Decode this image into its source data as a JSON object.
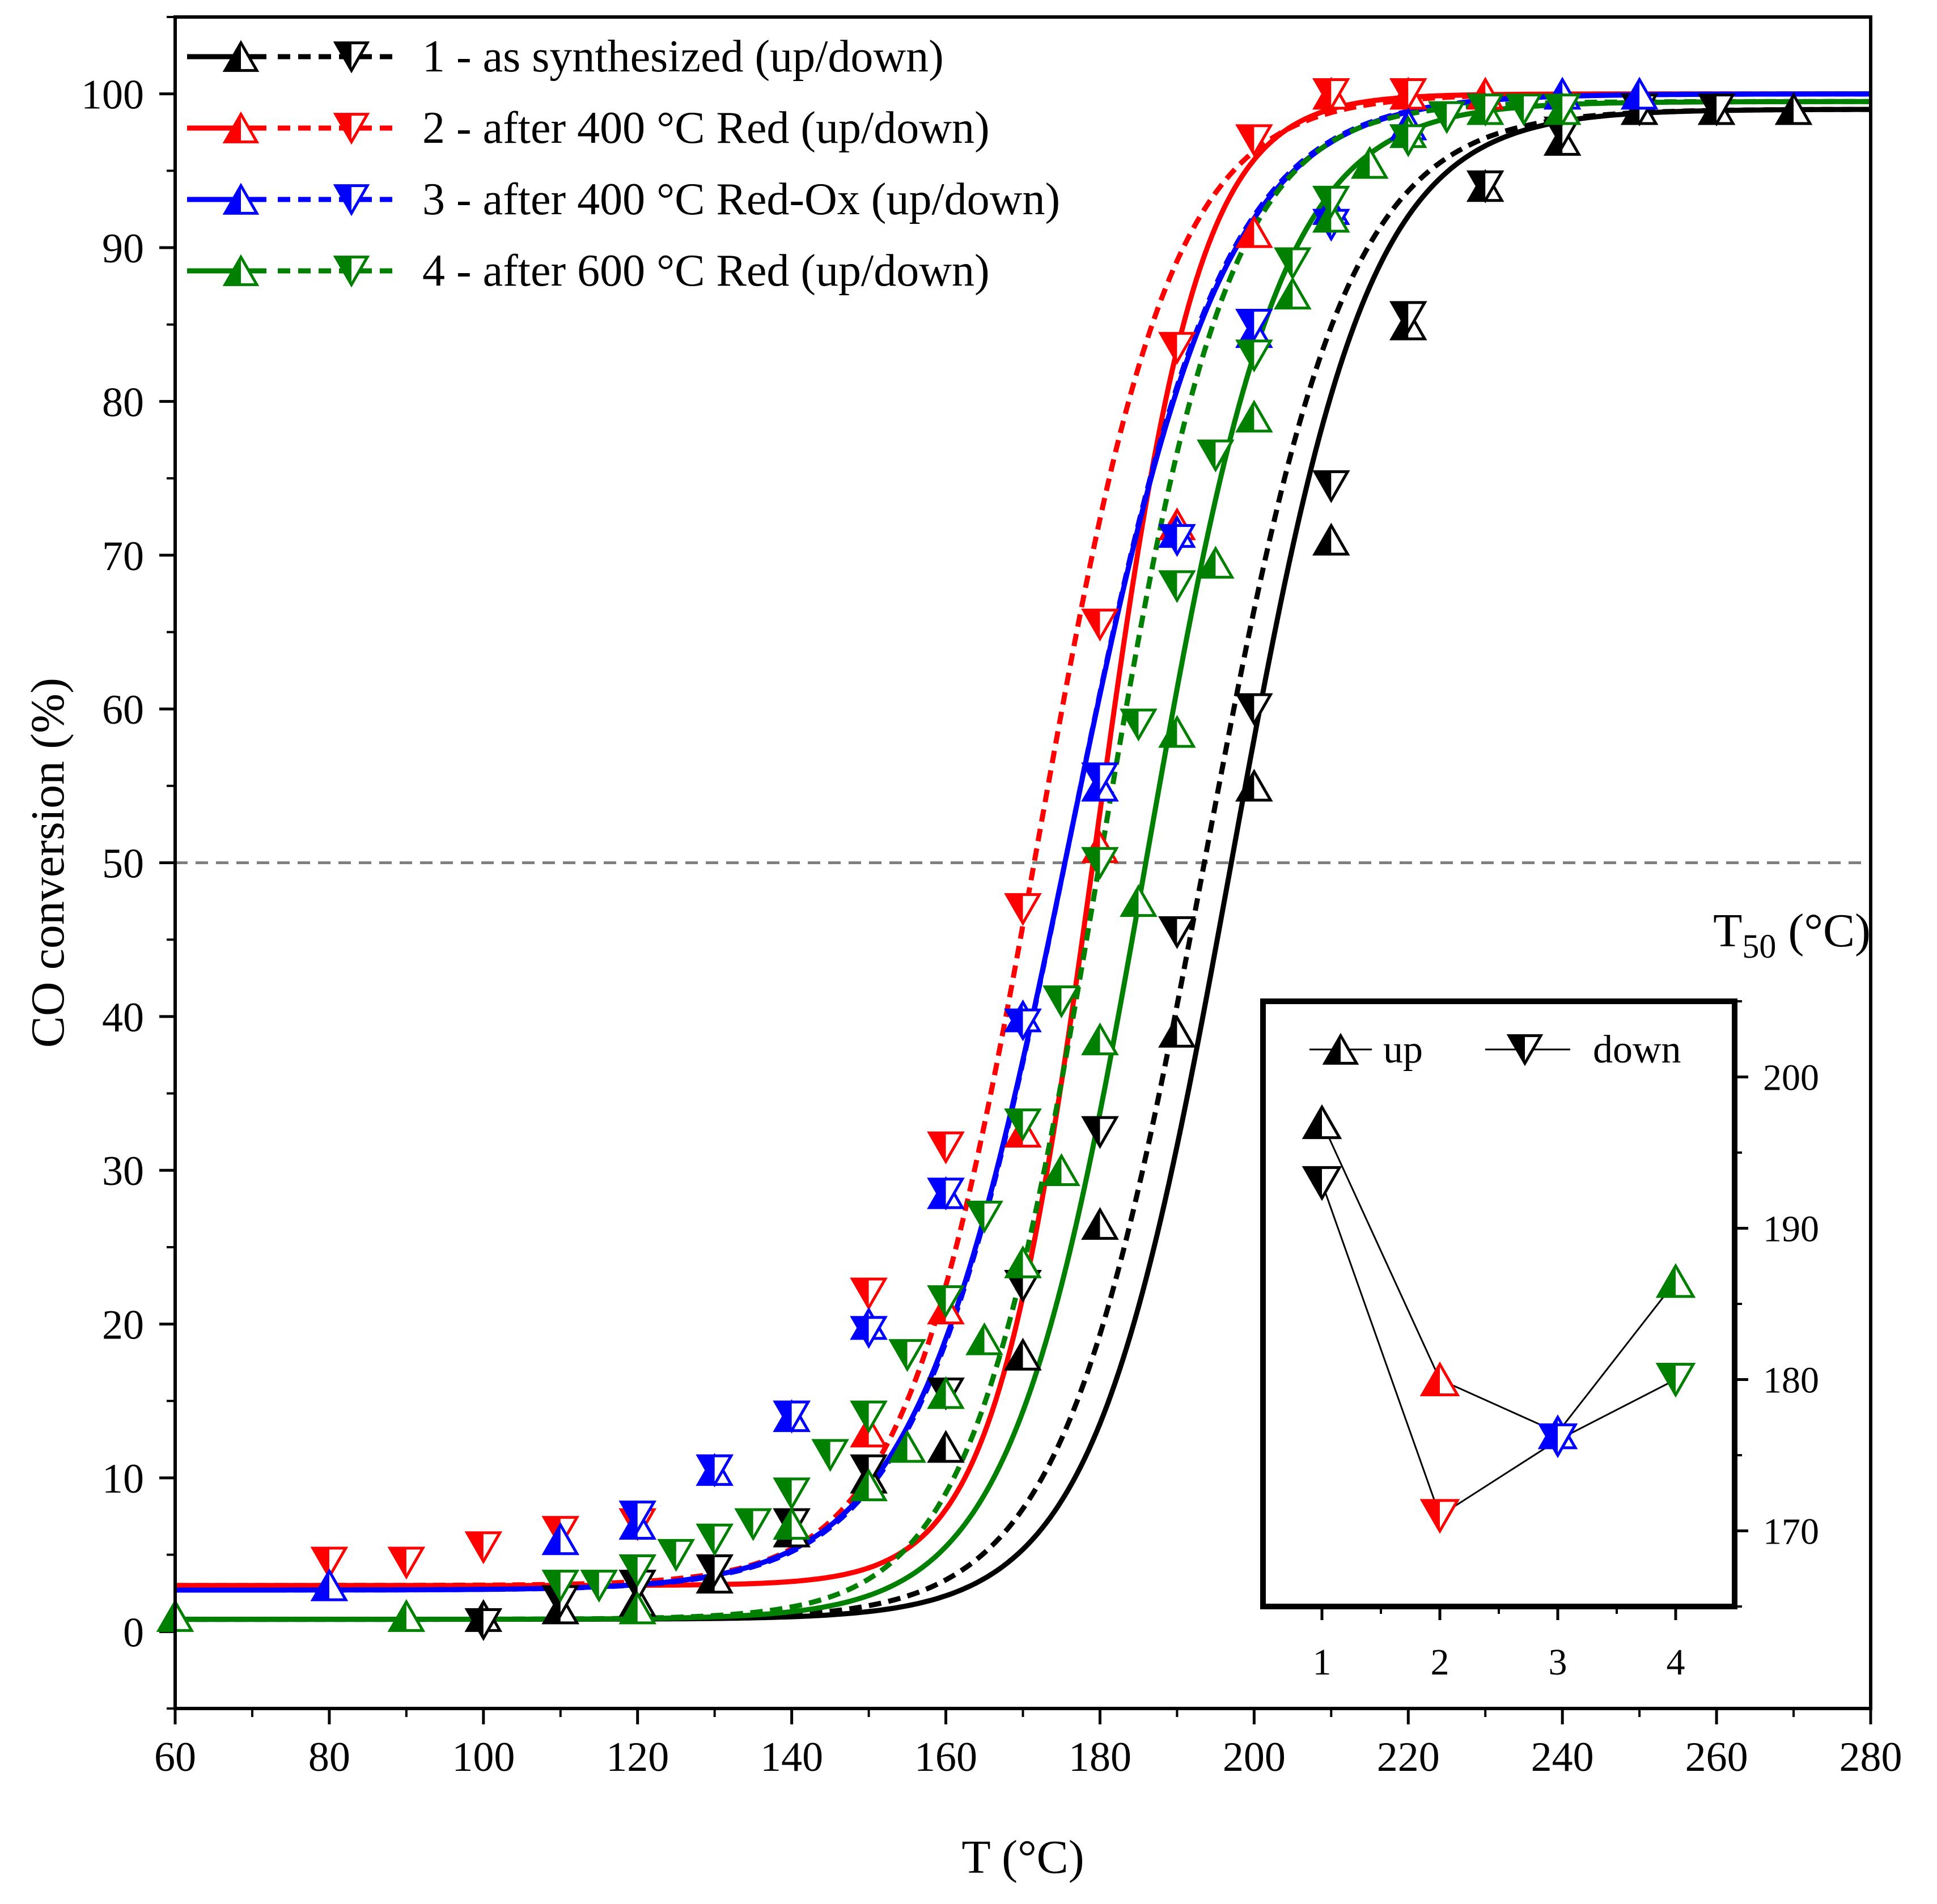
{
  "chart_data": {
    "type": "line",
    "xlabel": "T (°C)",
    "ylabel": "CO conversion (%)",
    "xlim": [
      60,
      280
    ],
    "ylim": [
      -5,
      105
    ],
    "x_ticks": [
      "60",
      "80",
      "100",
      "120",
      "140",
      "160",
      "180",
      "200",
      "220",
      "240",
      "260",
      "280"
    ],
    "y_ticks": [
      "0",
      "10",
      "20",
      "30",
      "40",
      "50",
      "60",
      "70",
      "80",
      "90",
      "100"
    ],
    "reference_line": {
      "y": 50,
      "style": "dashed",
      "color": "#808080"
    },
    "series": [
      {
        "name": "1 - as synthesized (up/down)",
        "color": "#000000",
        "up": {
          "x": [
            100,
            110,
            120,
            130,
            140,
            150,
            160,
            170,
            180,
            190,
            200,
            210,
            220,
            230,
            240,
            250,
            260,
            270
          ],
          "values": [
            1,
            1.5,
            2,
            3.5,
            6.5,
            10,
            12,
            18,
            26.5,
            39,
            55,
            71,
            85,
            94,
            97,
            99,
            99,
            99
          ]
        },
        "down": {
          "x": [
            100,
            110,
            120,
            130,
            140,
            150,
            160,
            170,
            180,
            190,
            200,
            210,
            220,
            230,
            240,
            250,
            260
          ],
          "values": [
            0.5,
            2,
            3,
            4,
            7,
            10.5,
            15.5,
            22.5,
            32.5,
            45.5,
            60,
            74.5,
            85.5,
            94,
            97.5,
            99,
            99
          ]
        },
        "fit_up": {
          "L0": 0.8,
          "L1": 99,
          "x0": 197,
          "k": 0.112
        },
        "fit_down": {
          "L0": 0.8,
          "L1": 99,
          "x0": 193.5,
          "k": 0.108
        }
      },
      {
        "name": "2 - after 400 °C Red (up/down)",
        "color": "#ff0000",
        "up": {
          "x": [
            150,
            160,
            170,
            180,
            190,
            200,
            210,
            220,
            230
          ],
          "values": [
            13,
            21,
            32.5,
            51,
            72,
            91,
            100,
            100,
            100
          ]
        },
        "down": {
          "x": [
            80,
            90,
            100,
            110,
            120,
            130,
            140,
            150,
            160,
            170,
            180,
            190,
            200,
            210,
            220
          ],
          "values": [
            4.5,
            4.5,
            5.5,
            6.5,
            7,
            10.5,
            14,
            22,
            31.5,
            47,
            65.5,
            83.5,
            97,
            100,
            100
          ]
        },
        "fit_up": {
          "L0": 3,
          "L1": 100,
          "x0": 179.5,
          "k": 0.15
        },
        "fit_down": {
          "L0": 3,
          "L1": 100,
          "x0": 172,
          "k": 0.115
        }
      },
      {
        "name": "3 - after 400 °C Red-Ox (up/down)",
        "color": "#0000ff",
        "up": {
          "x": [
            80,
            110,
            120,
            130,
            140,
            150,
            160,
            170,
            180,
            190,
            200,
            210,
            220,
            240,
            250
          ],
          "values": [
            3,
            6,
            7,
            10.5,
            14,
            20,
            28.5,
            40,
            55,
            71.5,
            84.5,
            92.5,
            98,
            100,
            100
          ]
        },
        "down": {
          "x": [
            120,
            130,
            140,
            150,
            160,
            170,
            180,
            190,
            200,
            210,
            220,
            230
          ],
          "values": [
            7.5,
            10.5,
            14,
            19.5,
            28.5,
            39.5,
            55.5,
            71,
            85,
            91.5,
            97,
            99
          ]
        },
        "fit_up": {
          "L0": 2.7,
          "L1": 100,
          "x0": 176,
          "k": 0.1
        },
        "fit_down": {
          "L0": 2.7,
          "L1": 100,
          "x0": 176,
          "k": 0.101
        }
      },
      {
        "name": "4 - after 600 °C Red (up/down)",
        "color": "#008000",
        "up": {
          "x": [
            60,
            90,
            120,
            140,
            150,
            155,
            160,
            165,
            170,
            175,
            180,
            185,
            190,
            195,
            200,
            205,
            210,
            215,
            220,
            230,
            240
          ],
          "values": [
            1,
            1,
            1.5,
            7,
            9.5,
            12,
            15.5,
            19,
            24,
            30,
            38.5,
            47.5,
            58.5,
            69.5,
            79,
            87,
            92,
            95.5,
            97.5,
            99,
            99
          ]
        },
        "down": {
          "x": [
            110,
            115,
            120,
            125,
            130,
            135,
            140,
            145,
            150,
            155,
            160,
            165,
            170,
            175,
            180,
            185,
            190,
            195,
            200,
            205,
            210,
            220,
            225,
            230,
            235,
            240
          ],
          "values": [
            3,
            3,
            4,
            5,
            6,
            7,
            9,
            11.5,
            14,
            18,
            21.5,
            27,
            33,
            41,
            50,
            59,
            68,
            76.5,
            83,
            89,
            93,
            97,
            98.5,
            99,
            99,
            99
          ]
        },
        "fit_up": {
          "L0": 0.8,
          "L1": 99.5,
          "x0": 186,
          "k": 0.115
        },
        "fit_down": {
          "L0": 0.8,
          "L1": 99.5,
          "x0": 180,
          "k": 0.12
        }
      }
    ],
    "inset": {
      "title": "T50 (°C)",
      "title_main": "T",
      "title_sub": "50",
      "title_unit": " (°C)",
      "legend_up": "up",
      "legend_down": "down",
      "x_ticks": [
        "1",
        "2",
        "3",
        "4"
      ],
      "y_ticks": [
        "170",
        "180",
        "190",
        "200"
      ],
      "ylim": [
        165,
        205
      ],
      "xlim": [
        0.5,
        4.5
      ],
      "up": {
        "x": [
          1,
          2,
          3,
          4
        ],
        "values": [
          197,
          180,
          176.5,
          186.5
        ],
        "colors": [
          "#000000",
          "#ff0000",
          "#0000ff",
          "#008000"
        ]
      },
      "down": {
        "x": [
          1,
          2,
          3,
          4
        ],
        "values": [
          193,
          171,
          176,
          180
        ],
        "colors": [
          "#000000",
          "#ff0000",
          "#0000ff",
          "#008000"
        ]
      }
    }
  }
}
